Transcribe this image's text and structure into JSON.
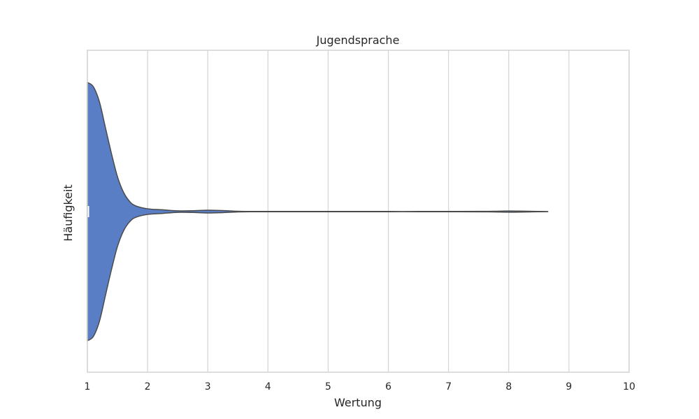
{
  "chart_data": {
    "type": "violin",
    "title": "Jugendsprache",
    "xlabel": "Wertung",
    "ylabel": "Häufigkeit",
    "xlim": [
      1,
      10
    ],
    "xticks": [
      1,
      2,
      3,
      4,
      5,
      6,
      7,
      8,
      9,
      10
    ],
    "grid": true,
    "colors": {
      "fill": "#5A7EC6",
      "edge": "#4A4A4A",
      "grid": "#D3D3D3",
      "spine": "#D3D3D3"
    },
    "density": {
      "x": [
        1.0,
        1.1,
        1.2,
        1.3,
        1.4,
        1.5,
        1.6,
        1.7,
        1.8,
        2.0,
        2.25,
        2.5,
        2.75,
        3.0,
        3.25,
        3.5,
        3.75,
        4.0,
        4.5,
        5.0,
        5.5,
        6.0,
        6.5,
        7.0,
        7.5,
        7.75,
        8.0,
        8.25,
        8.5,
        8.65
      ],
      "half_width": [
        1.0,
        0.966,
        0.85,
        0.65,
        0.45,
        0.27,
        0.15,
        0.08,
        0.045,
        0.022,
        0.014,
        0.006,
        0.007,
        0.011,
        0.008,
        0.003,
        0.0015,
        0.0012,
        0.0012,
        0.0016,
        0.0011,
        0.001,
        0.001,
        0.0014,
        0.0018,
        0.0025,
        0.0045,
        0.0033,
        0.0016,
        0.0004
      ]
    }
  }
}
